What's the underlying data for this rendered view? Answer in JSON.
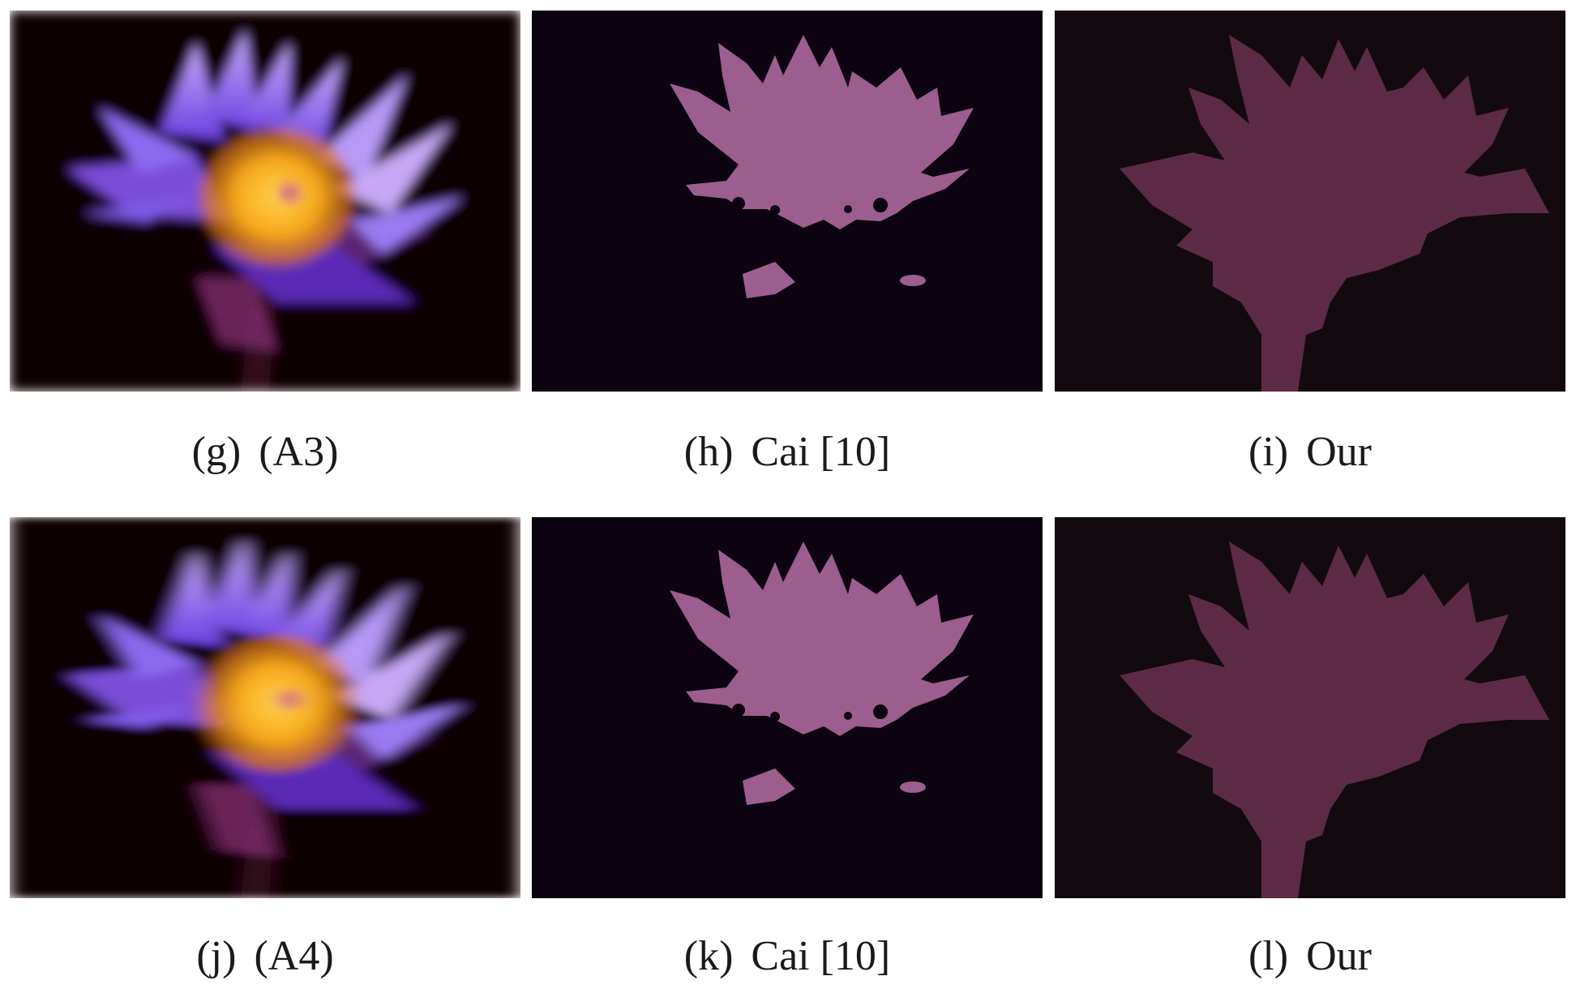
{
  "figure": {
    "rows": [
      {
        "panels": [
          {
            "id": "g",
            "tag": "(g)",
            "label": "(A3)",
            "kind": "blurred-photo"
          },
          {
            "id": "h",
            "tag": "(h)",
            "label": "Cai [10]",
            "kind": "segmentation-mask-cai"
          },
          {
            "id": "i",
            "tag": "(i)",
            "label": "Our",
            "kind": "segmentation-mask-ours"
          }
        ]
      },
      {
        "panels": [
          {
            "id": "j",
            "tag": "(j)",
            "label": "(A4)",
            "kind": "blurred-photo"
          },
          {
            "id": "k",
            "tag": "(k)",
            "label": "Cai [10]",
            "kind": "segmentation-mask-cai"
          },
          {
            "id": "l",
            "tag": "(l)",
            "label": "Our",
            "kind": "segmentation-mask-ours"
          }
        ]
      }
    ],
    "colors": {
      "photo_bg": "#0a0208",
      "petal": "#8a63ee",
      "petal_light": "#c6a8f5",
      "center": "#f6b21b",
      "cai_bg": "#0c0210",
      "cai_mask": "#9c5e8e",
      "our_bg": "#130a10",
      "our_mask": "#5c2a44"
    }
  }
}
